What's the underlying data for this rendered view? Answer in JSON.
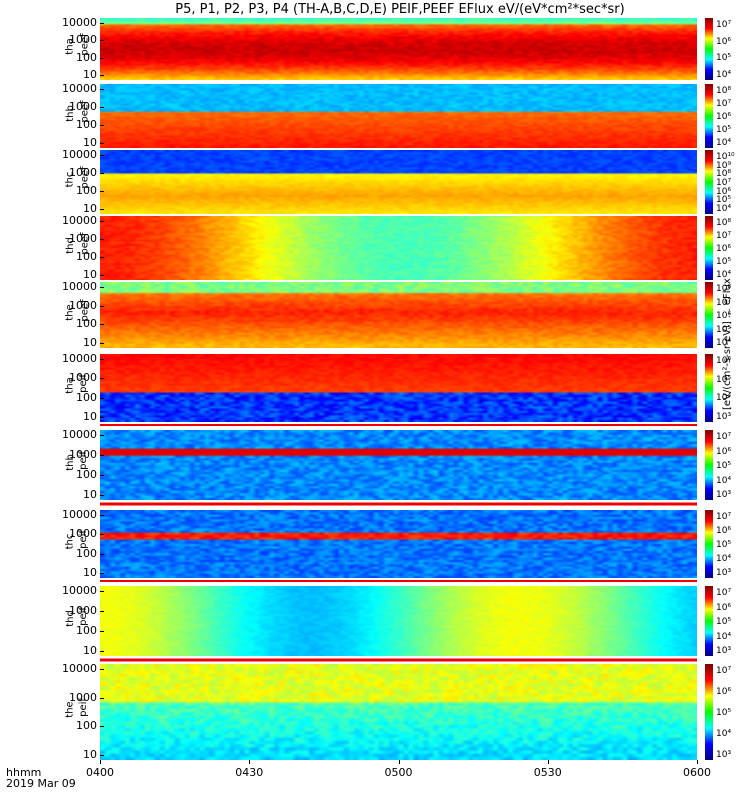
{
  "title": "P5, P1, P2, P3, P4 (TH-A,B,C,D,E) PEIF,PEEF EFlux eV/(eV*cm²*sec*sr)",
  "footer": {
    "time_label": "hhmm",
    "date_label": "2019 Mar 09"
  },
  "zlabel": "[eV/(cm²-s-sr-eV)] ... eFlux",
  "chart_data": {
    "type": "heatmap",
    "x_axis": {
      "ticks": [
        "0400",
        "0430",
        "0500",
        "0530",
        "0600"
      ],
      "range": [
        "04:00",
        "06:00"
      ]
    },
    "y_axis_scale": "log",
    "y_ticks": [
      "10000",
      "1000",
      "100",
      "10"
    ],
    "panels": [
      {
        "name": "tha peef",
        "label_top": "tha",
        "label_bottom": "peef",
        "colorbar_ticks": [
          "10⁷",
          "10⁶",
          "10⁵",
          "10⁴"
        ]
      },
      {
        "name": "thb peef",
        "label_top": "thb",
        "label_bottom": "peef",
        "colorbar_ticks": [
          "10⁸",
          "10⁷",
          "10⁶",
          "10⁵",
          "10⁴"
        ]
      },
      {
        "name": "thc peef",
        "label_top": "thc",
        "label_bottom": "peef",
        "colorbar_ticks": [
          "10¹⁰",
          "10⁹",
          "10⁸",
          "10⁷",
          "10⁶",
          "10⁵",
          "10⁴"
        ]
      },
      {
        "name": "thd peef",
        "label_top": "thd",
        "label_bottom": "peef",
        "colorbar_ticks": [
          "10⁸",
          "10⁷",
          "10⁶",
          "10⁵",
          "10⁴"
        ]
      },
      {
        "name": "the peef",
        "label_top": "the",
        "label_bottom": "peef",
        "colorbar_ticks": [
          "10⁸",
          "10⁷",
          "10⁶",
          "10⁵",
          "10⁴"
        ]
      },
      {
        "name": "tha peif",
        "label_top": "tha",
        "label_bottom": "peif",
        "colorbar_ticks": [
          "10⁶",
          "10⁵",
          "10⁴",
          "10³"
        ]
      },
      {
        "name": "thb peif",
        "label_top": "thb",
        "label_bottom": "peif",
        "colorbar_ticks": [
          "10⁷",
          "10⁶",
          "10⁵",
          "10⁴",
          "10³"
        ]
      },
      {
        "name": "thc peif",
        "label_top": "thc",
        "label_bottom": "peif",
        "colorbar_ticks": [
          "10⁷",
          "10⁶",
          "10⁵",
          "10⁴",
          "10³"
        ]
      },
      {
        "name": "thd peif",
        "label_top": "thd",
        "label_bottom": "peif",
        "colorbar_ticks": [
          "10⁷",
          "10⁶",
          "10⁵",
          "10⁴",
          "10³"
        ]
      },
      {
        "name": "the peif",
        "label_top": "the",
        "label_bottom": "peif",
        "colorbar_ticks": [
          "10⁷",
          "10⁶",
          "10⁵",
          "10⁴",
          "10³"
        ]
      }
    ]
  }
}
